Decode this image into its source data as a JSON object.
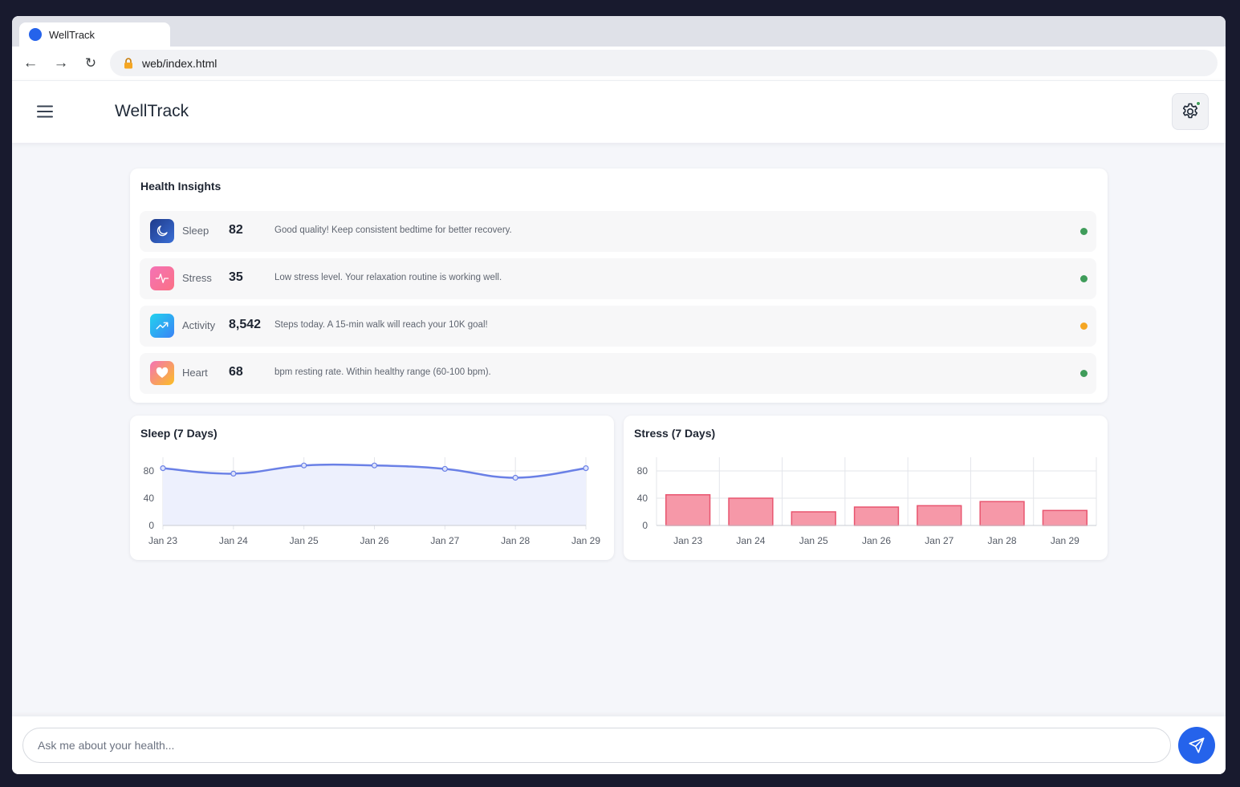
{
  "browser": {
    "tab_title": "WellTrack",
    "url": "web/index.html",
    "back_label": "←",
    "forward_label": "→",
    "reload_label": "↻",
    "favicon_color": "#2563eb"
  },
  "header": {
    "title": "WellTrack",
    "menu_icon": "hamburger-menu-icon",
    "settings_icon": "gear-icon"
  },
  "insights": {
    "title": "Health Insights",
    "items": [
      {
        "label": "Sleep",
        "value": "82",
        "message": "Good quality! Keep consistent bedtime for better recovery.",
        "status_color": "#3f9c5a",
        "icon": "moon-icon"
      },
      {
        "label": "Stress",
        "value": "35",
        "message": "Low stress level. Your relaxation routine is working well.",
        "status_color": "#3f9c5a",
        "icon": "pulse-icon"
      },
      {
        "label": "Activity",
        "value": "8,542",
        "message": "Steps today. A 15-min walk will reach your 10K goal!",
        "status_color": "#f5a623",
        "icon": "trending-up-icon"
      },
      {
        "label": "Heart",
        "value": "68",
        "message": "bpm resting rate. Within healthy range (60-100 bpm).",
        "status_color": "#3f9c5a",
        "icon": "heart-icon"
      }
    ]
  },
  "chart_data": [
    {
      "type": "line",
      "title": "Sleep (7 Days)",
      "categories": [
        "Jan 23",
        "Jan 24",
        "Jan 25",
        "Jan 26",
        "Jan 27",
        "Jan 28",
        "Jan 29"
      ],
      "values": [
        84,
        76,
        88,
        88,
        83,
        70,
        84
      ],
      "ylim": [
        0,
        100
      ],
      "yticks": [
        "0",
        "40",
        "80"
      ],
      "grid": true,
      "color": "#6a80e6",
      "fill": "#edf0fd"
    },
    {
      "type": "bar",
      "title": "Stress (7 Days)",
      "categories": [
        "Jan 23",
        "Jan 24",
        "Jan 25",
        "Jan 26",
        "Jan 27",
        "Jan 28",
        "Jan 29"
      ],
      "values": [
        45,
        40,
        20,
        27,
        29,
        35,
        22
      ],
      "ylim": [
        0,
        100
      ],
      "yticks": [
        "0",
        "40",
        "80"
      ],
      "grid": true,
      "color": "#f698a8",
      "stroke": "#e8556f"
    }
  ],
  "chat": {
    "placeholder": "Ask me about your health...",
    "send_icon": "send-icon"
  }
}
